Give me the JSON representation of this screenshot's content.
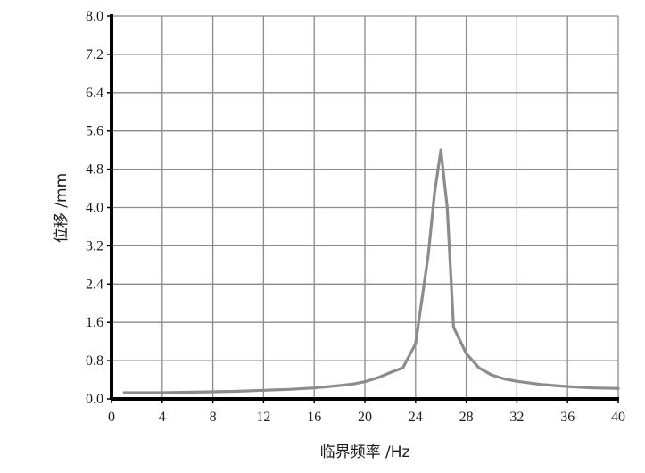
{
  "chart_data": {
    "type": "line",
    "title": "",
    "xlabel": "临界频率 /Hz",
    "ylabel": "位移 /mm",
    "xlim": [
      0,
      40
    ],
    "ylim": [
      0,
      8.0
    ],
    "x_ticks": [
      "0",
      "4",
      "8",
      "12",
      "16",
      "20",
      "24",
      "28",
      "32",
      "36",
      "40"
    ],
    "y_ticks": [
      "0.0",
      "0.8",
      "1.6",
      "2.4",
      "3.2",
      "4.0",
      "4.8",
      "5.6",
      "6.4",
      "7.2",
      "8.0"
    ],
    "grid": true,
    "series": [
      {
        "color": "#8c8c8c",
        "x": [
          1,
          2,
          4,
          6,
          8,
          10,
          12,
          14,
          16,
          18,
          19,
          20,
          21,
          22,
          23,
          24,
          25,
          25.5,
          26,
          26.5,
          27,
          28,
          29,
          30,
          31,
          32,
          34,
          36,
          38,
          40
        ],
        "y": [
          0.13,
          0.13,
          0.13,
          0.14,
          0.15,
          0.16,
          0.18,
          0.2,
          0.23,
          0.28,
          0.31,
          0.36,
          0.44,
          0.55,
          0.65,
          1.15,
          3.0,
          4.3,
          5.2,
          4.0,
          1.5,
          0.95,
          0.65,
          0.5,
          0.42,
          0.37,
          0.3,
          0.26,
          0.23,
          0.22
        ]
      }
    ]
  }
}
